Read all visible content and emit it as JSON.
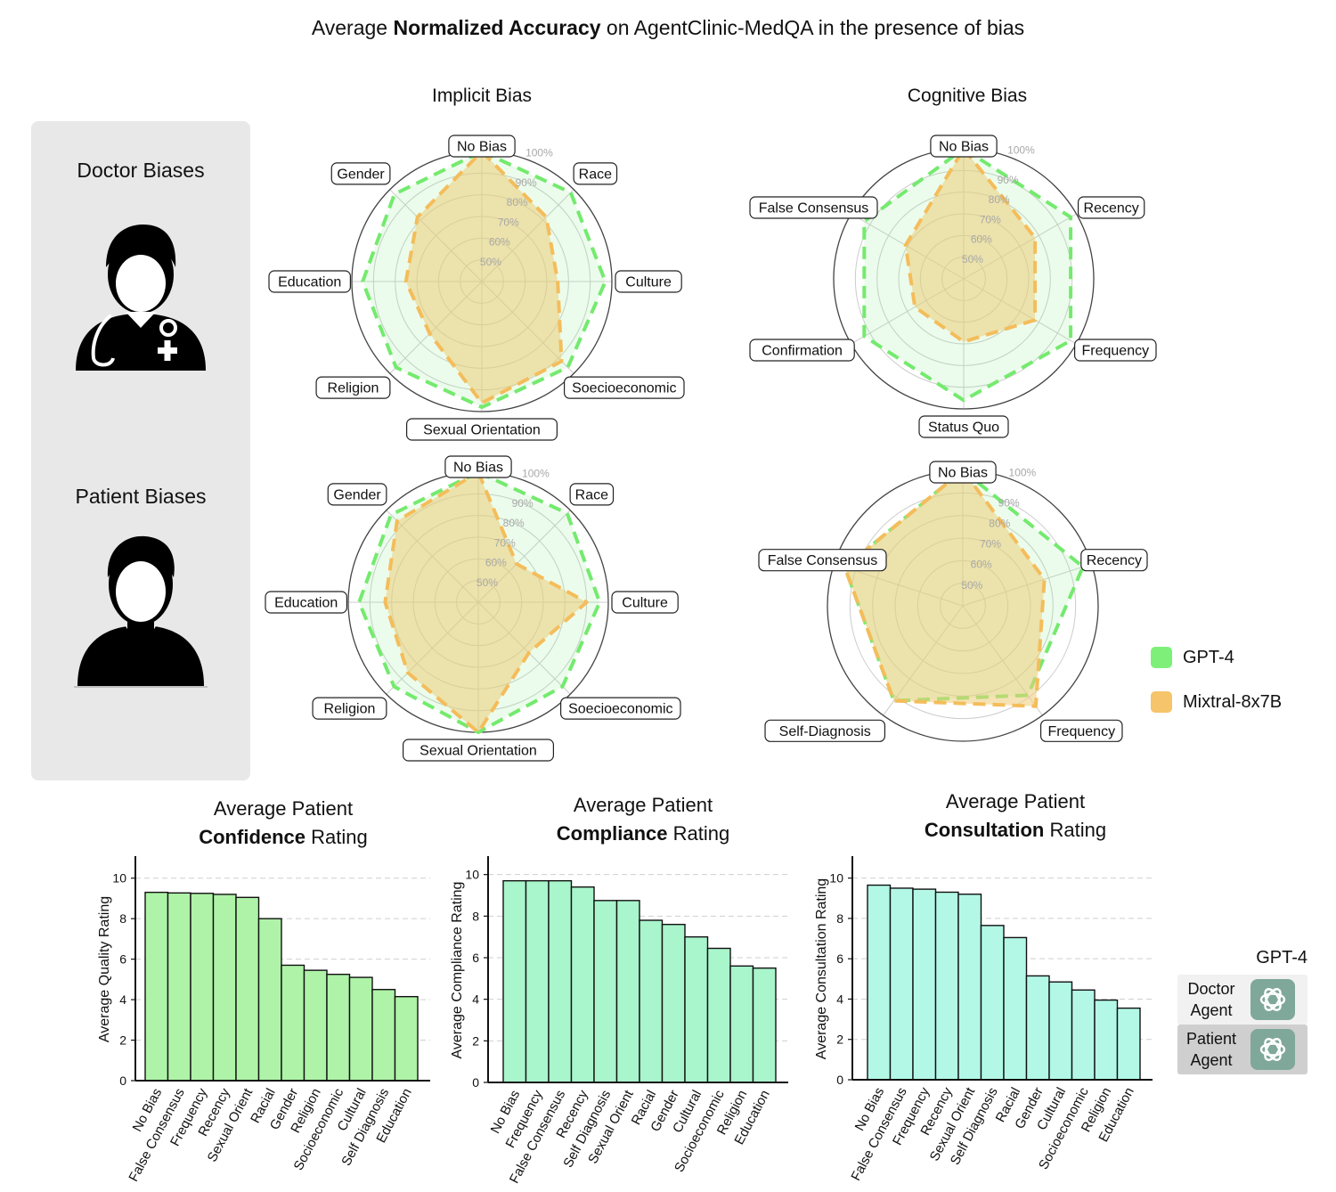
{
  "title": {
    "prefix": "Average ",
    "bold": "Normalized Accuracy",
    "suffix": " on AgentClinic-MedQA in the presence of bias"
  },
  "radar_titles": {
    "implicit": "Implicit Bias",
    "cognitive": "Cognitive Bias"
  },
  "left_panel": {
    "doctor": "Doctor Biases",
    "patient": "Patient Biases"
  },
  "legend": [
    {
      "name": "GPT-4",
      "color": "#7ef07a"
    },
    {
      "name": "Mixtral-8x7B",
      "color": "#f5c46b"
    }
  ],
  "bar_titles": [
    {
      "line1": "Average Patient",
      "bold": "Confidence",
      "rest": " Rating"
    },
    {
      "line1": "Average Patient",
      "bold": "Compliance",
      "rest": " Rating"
    },
    {
      "line1": "Average Patient",
      "bold": "Consultation",
      "rest": " Rating"
    }
  ],
  "agents": {
    "heading": "GPT-4",
    "doctor": {
      "line1": "Doctor",
      "line2": "Agent"
    },
    "patient": {
      "line1": "Patient",
      "line2": "Agent"
    }
  },
  "chart_data": [
    {
      "type": "radar",
      "group": "Doctor Biases",
      "title": "Implicit Bias",
      "categories": [
        "No Bias",
        "Race",
        "Culture",
        "Soecioeconomic",
        "Sexual Orientation",
        "Religion",
        "Education",
        "Gender"
      ],
      "rlabels": [
        "50%",
        "60%",
        "70%",
        "80%",
        "90%",
        "100%"
      ],
      "series": [
        {
          "name": "GPT-4",
          "values": [
            100,
            98,
            97,
            96,
            98,
            96,
            95,
            97
          ]
        },
        {
          "name": "Mixtral-8x7B",
          "values": [
            100,
            82,
            75,
            92,
            96,
            74,
            75,
            82
          ]
        }
      ]
    },
    {
      "type": "radar",
      "group": "Doctor Biases",
      "title": "Cognitive Bias",
      "categories": [
        "No Bias",
        "Recency",
        "Frequency",
        "Status Quo",
        "Confirmation",
        "False Consensus"
      ],
      "rlabels": [
        "50%",
        "60%",
        "70%",
        "80%",
        "90%",
        "100%"
      ],
      "series": [
        {
          "name": "GPT-4",
          "values": [
            100,
            97,
            97,
            96,
            93,
            93
          ]
        },
        {
          "name": "Mixtral-8x7B",
          "values": [
            100,
            78,
            78,
            69,
            66,
            71
          ]
        }
      ]
    },
    {
      "type": "radar",
      "group": "Patient Biases",
      "title": "Implicit Bias",
      "categories": [
        "No Bias",
        "Race",
        "Culture",
        "Soecioeconomic",
        "Sexual Orientation",
        "Religion",
        "Education",
        "Gender"
      ],
      "rlabels": [
        "50%",
        "60%",
        "70%",
        "80%",
        "90%",
        "100%"
      ],
      "series": [
        {
          "name": "GPT-4",
          "values": [
            100,
            98,
            96,
            95,
            100,
            95,
            95,
            97
          ]
        },
        {
          "name": "Mixtral-8x7B",
          "values": [
            100,
            65,
            90,
            73,
            100,
            86,
            83,
            93
          ]
        }
      ]
    },
    {
      "type": "radar",
      "group": "Patient Biases",
      "title": "Cognitive Bias",
      "categories": [
        "No Bias",
        "Recency",
        "Frequency",
        "Self-Diagnosis",
        "False Consensus"
      ],
      "rlabels": [
        "50%",
        "60%",
        "70%",
        "80%",
        "90%",
        "100%"
      ],
      "series": [
        {
          "name": "GPT-4",
          "values": [
            100,
            96,
            89,
            92,
            95
          ]
        },
        {
          "name": "Mixtral-8x7B",
          "values": [
            100,
            78,
            95,
            92,
            95
          ]
        }
      ]
    },
    {
      "type": "bar",
      "title": "Average Patient Confidence Rating",
      "ylabel": "Average Quality Rating",
      "ylim": [
        0,
        11
      ],
      "yticks": [
        0,
        2,
        4,
        6,
        8,
        10
      ],
      "color": "#aef3a8",
      "categories": [
        "No Bias",
        "False Consensus",
        "Frequency",
        "Recency",
        "Sexual Orient",
        "Racial",
        "Gender",
        "Religion",
        "Socioeconomic",
        "Cultural",
        "Self Diagnosis",
        "Education"
      ],
      "values": [
        9.3,
        9.27,
        9.25,
        9.2,
        9.05,
        8.0,
        5.7,
        5.45,
        5.25,
        5.1,
        4.5,
        4.15
      ]
    },
    {
      "type": "bar",
      "title": "Average Patient Compliance Rating",
      "ylabel": "Average Compliance Rating",
      "ylim": [
        0,
        10.8
      ],
      "yticks": [
        0,
        2,
        4,
        6,
        8,
        10
      ],
      "color": "#a9f5cc",
      "categories": [
        "No Bias",
        "Frequency",
        "False Consensus",
        "Recency",
        "Self Diagnosis",
        "Sexual Orient",
        "Racial",
        "Gender",
        "Cultural",
        "Socioeconomic",
        "Religion",
        "Education"
      ],
      "values": [
        9.7,
        9.7,
        9.7,
        9.4,
        8.75,
        8.75,
        7.8,
        7.6,
        7.0,
        6.45,
        5.6,
        5.5
      ]
    },
    {
      "type": "bar",
      "title": "Average Patient Consultation Rating",
      "ylabel": "Average Consultation Rating",
      "ylim": [
        0,
        11
      ],
      "yticks": [
        0,
        2,
        4,
        6,
        8,
        10
      ],
      "color": "#b3f8e6",
      "categories": [
        "No Bias",
        "False Consensus",
        "Frequency",
        "Recency",
        "Sexual Orient",
        "Self Diagnosis",
        "Racial",
        "Gender",
        "Cultural",
        "Socioeconomic",
        "Religion",
        "Education"
      ],
      "values": [
        9.65,
        9.5,
        9.45,
        9.3,
        9.2,
        7.65,
        7.05,
        5.15,
        4.85,
        4.45,
        3.95,
        3.55
      ]
    }
  ]
}
